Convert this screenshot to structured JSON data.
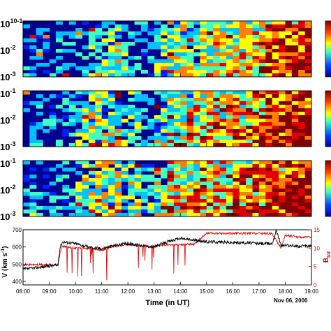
{
  "chart_data": [
    {
      "type": "heatmap",
      "panel": 1,
      "y_ticks": [
        "10-1",
        "10-2",
        "10-3"
      ],
      "y_scale": "log",
      "ylim": [
        0.001,
        0.1
      ],
      "xlim": [
        "08:00",
        "19:00"
      ],
      "colorscale": [
        "#00008f",
        "#0020ff",
        "#00c0ff",
        "#40ffc0",
        "#ffff00",
        "#ff8000",
        "#e00000",
        "#800000"
      ],
      "activity_profile": [
        0.08,
        0.08,
        0.1,
        0.12,
        0.3,
        0.35,
        0.18,
        0.1,
        0.35,
        0.45,
        0.35,
        0.5,
        0.55,
        0.5,
        0.6,
        0.75,
        0.8,
        0.85
      ]
    },
    {
      "type": "heatmap",
      "panel": 2,
      "y_ticks": [
        "10-1",
        "10-2",
        "10-3"
      ],
      "y_scale": "log",
      "ylim": [
        0.001,
        0.1
      ],
      "xlim": [
        "08:00",
        "19:00"
      ],
      "colorscale": [
        "#00008f",
        "#0020ff",
        "#00c0ff",
        "#40ffc0",
        "#ffff00",
        "#ff8000",
        "#e00000",
        "#800000"
      ],
      "activity_profile": [
        0.1,
        0.1,
        0.15,
        0.25,
        0.4,
        0.45,
        0.25,
        0.15,
        0.3,
        0.5,
        0.55,
        0.6,
        0.55,
        0.6,
        0.7,
        0.8,
        0.85,
        0.9
      ]
    },
    {
      "type": "heatmap",
      "panel": 3,
      "y_ticks": [
        "10-1",
        "10-2",
        "10-3"
      ],
      "y_scale": "log",
      "ylim": [
        0.001,
        0.1
      ],
      "xlim": [
        "08:00",
        "19:00"
      ],
      "colorscale": [
        "#00008f",
        "#0020ff",
        "#00c0ff",
        "#40ffc0",
        "#ffff00",
        "#ff8000",
        "#e00000",
        "#800000"
      ],
      "activity_profile": [
        0.12,
        0.12,
        0.15,
        0.3,
        0.45,
        0.45,
        0.3,
        0.2,
        0.4,
        0.55,
        0.6,
        0.6,
        0.6,
        0.65,
        0.7,
        0.8,
        0.85,
        0.95
      ]
    },
    {
      "type": "line",
      "xlabel": "Time (in UT)",
      "ylabel_left": "V (km s-1)",
      "ylabel_right": "Btot",
      "x_ticks": [
        "08:00",
        "09:00",
        "10:00",
        "11:00",
        "12:00",
        "13:00",
        "14:00",
        "15:00",
        "16:00",
        "17:00",
        "18:00",
        "19:00"
      ],
      "y_left_ticks": [
        400,
        500,
        600,
        700
      ],
      "y_right_ticks": [
        0,
        5,
        10,
        15
      ],
      "ylim_left": [
        380,
        700
      ],
      "ylim_right": [
        0,
        15
      ],
      "date_label": "Nov 06, 2000",
      "series": [
        {
          "axis": "left",
          "color": "#000000",
          "x": [
            "08:00",
            "08:30",
            "09:00",
            "09:20",
            "09:25",
            "09:30",
            "10:00",
            "10:30",
            "11:00",
            "11:30",
            "12:00",
            "12:30",
            "13:00",
            "13:30",
            "14:00",
            "14:30",
            "15:00",
            "15:30",
            "16:00",
            "16:30",
            "17:00",
            "17:30",
            "17:40",
            "17:50",
            "18:00",
            "18:30",
            "19:00"
          ],
          "values": [
            470,
            480,
            490,
            495,
            600,
            630,
            620,
            600,
            590,
            610,
            620,
            610,
            600,
            630,
            650,
            640,
            630,
            630,
            625,
            625,
            620,
            620,
            700,
            610,
            610,
            605,
            605
          ]
        },
        {
          "axis": "right",
          "color": "#e00000",
          "x": [
            "08:00",
            "08:30",
            "09:00",
            "09:20",
            "09:25",
            "09:30",
            "10:00",
            "10:30",
            "11:00",
            "11:30",
            "12:00",
            "12:30",
            "13:00",
            "13:30",
            "14:00",
            "14:30",
            "15:00",
            "15:30",
            "16:00",
            "16:30",
            "17:00",
            "17:30",
            "17:50",
            "18:00",
            "18:30",
            "19:00"
          ],
          "values": [
            5.5,
            5.5,
            5.5,
            5.5,
            9,
            10.5,
            10,
            10,
            9.5,
            10.5,
            11,
            10.5,
            10.5,
            11,
            11,
            11,
            14,
            14,
            14,
            14,
            14,
            14,
            10,
            13.5,
            13,
            13
          ]
        }
      ]
    }
  ]
}
